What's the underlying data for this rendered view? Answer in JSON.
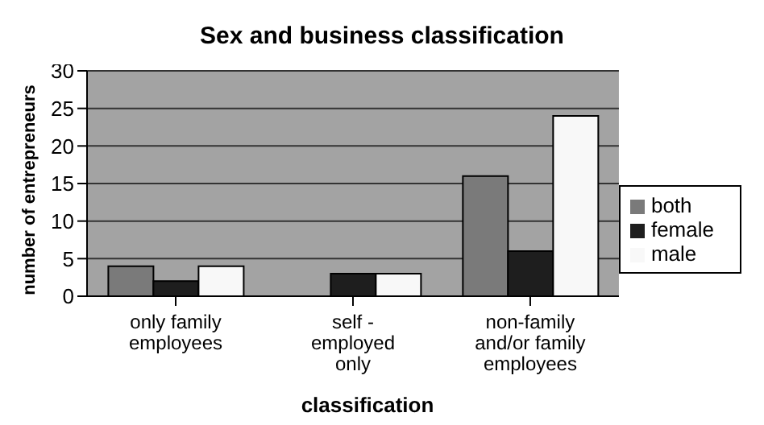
{
  "chart_data": {
    "type": "bar",
    "title": "Sex and business classification",
    "xlabel": "classification",
    "ylabel": "number of entrepreneurs",
    "categories": [
      "only family\nemployees",
      "self -\nemployed\nonly",
      "non-family\nand/or family\nemployees"
    ],
    "series": [
      {
        "name": "both",
        "color": "#7a7a7a",
        "values": [
          4,
          0,
          16
        ]
      },
      {
        "name": "female",
        "color": "#1e1e1e",
        "values": [
          2,
          3,
          6
        ]
      },
      {
        "name": "male",
        "color": "#f8f8f8",
        "values": [
          4,
          3,
          24
        ]
      }
    ],
    "ylim": [
      0,
      30
    ],
    "yticks": [
      0,
      5,
      10,
      15,
      20,
      25,
      30
    ],
    "grid": "y",
    "legend": "right"
  }
}
